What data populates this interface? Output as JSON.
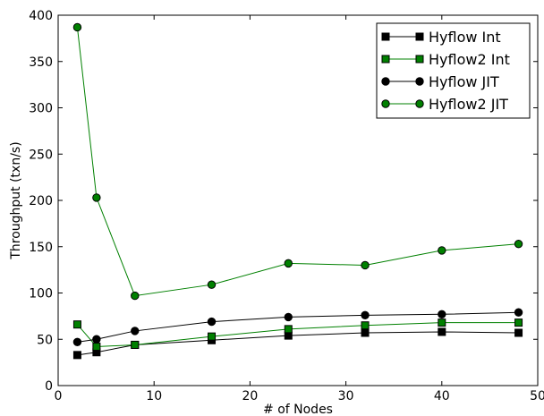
{
  "chart_data": {
    "type": "line",
    "title": "",
    "xlabel": "# of Nodes",
    "ylabel": "Throughput (txn/s)",
    "xlim": [
      0,
      50
    ],
    "ylim": [
      0,
      400
    ],
    "xticks": [
      0,
      10,
      20,
      30,
      40,
      50
    ],
    "yticks": [
      0,
      50,
      100,
      150,
      200,
      250,
      300,
      350,
      400
    ],
    "grid": false,
    "legend_position": "top-right",
    "x": [
      2,
      4,
      8,
      16,
      24,
      32,
      40,
      48
    ],
    "series": [
      {
        "name": "Hyflow Int",
        "values": [
          33,
          36,
          44,
          49,
          54,
          57,
          58,
          57
        ],
        "color": "#000000",
        "marker": "square"
      },
      {
        "name": "Hyflow2 Int",
        "values": [
          66,
          42,
          44,
          53,
          61,
          65,
          68,
          68
        ],
        "color": "#008000",
        "marker": "square"
      },
      {
        "name": "Hyflow JIT",
        "values": [
          47,
          50,
          59,
          69,
          74,
          76,
          77,
          79
        ],
        "color": "#000000",
        "marker": "circle"
      },
      {
        "name": "Hyflow2 JIT",
        "values": [
          387,
          203,
          97,
          109,
          132,
          130,
          146,
          153
        ],
        "color": "#008000",
        "marker": "circle"
      }
    ]
  }
}
